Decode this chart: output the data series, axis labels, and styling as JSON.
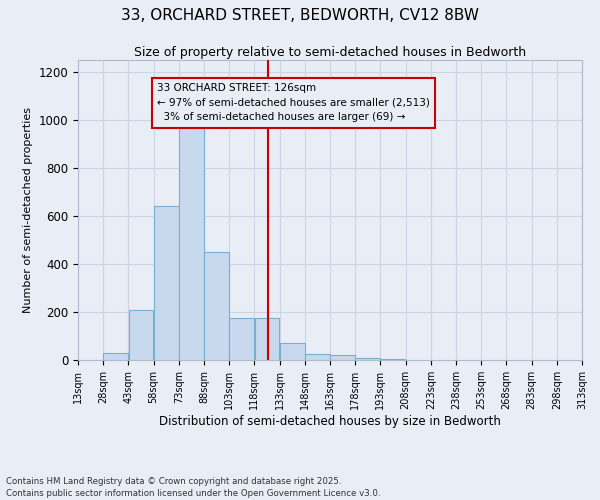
{
  "title_line1": "33, ORCHARD STREET, BEDWORTH, CV12 8BW",
  "title_line2": "Size of property relative to semi-detached houses in Bedworth",
  "xlabel": "Distribution of semi-detached houses by size in Bedworth",
  "ylabel": "Number of semi-detached properties",
  "footnote": "Contains HM Land Registry data © Crown copyright and database right 2025.\nContains public sector information licensed under the Open Government Licence v3.0.",
  "bin_edges": [
    13,
    28,
    43,
    58,
    73,
    88,
    103,
    118,
    133,
    148,
    163,
    178,
    193,
    208,
    223,
    238,
    253,
    268,
    283,
    298,
    313
  ],
  "bar_heights": [
    0,
    30,
    210,
    640,
    1000,
    450,
    175,
    175,
    70,
    25,
    20,
    10,
    5,
    0,
    0,
    0,
    0,
    0,
    0,
    0
  ],
  "bar_color": "#c8d9ed",
  "bar_edge_color": "#7aafd4",
  "property_size": 126,
  "property_label": "33 ORCHARD STREET: 126sqm",
  "pct_smaller": 97,
  "n_smaller": 2513,
  "pct_larger": 3,
  "n_larger": 69,
  "vline_color": "#cc0000",
  "annotation_box_color": "#cc0000",
  "ylim": [
    0,
    1250
  ],
  "yticks": [
    0,
    200,
    400,
    600,
    800,
    1000,
    1200
  ],
  "grid_color": "#cdd5e4",
  "bg_color": "#e8edf6",
  "title_fontsize": 11,
  "subtitle_fontsize": 9,
  "annotation_fontsize": 7.5
}
